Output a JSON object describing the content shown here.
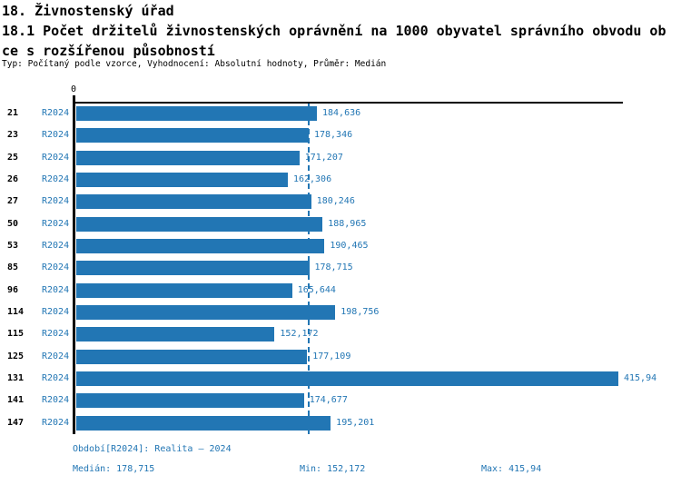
{
  "title": "18. Živnostenský úřad",
  "subtitle_line1": "18.1 Počet držitelů živnostenských oprávnění na 1000 obyvatel správního obvodu ob",
  "subtitle_line2": "ce s rozšířenou působností",
  "meta": "Typ: Počítaný podle vzorce, Vyhodnocení: Absolutní hodnoty, Průměr: Medián",
  "chart_data": {
    "type": "bar",
    "orientation": "horizontal",
    "title": "18.1 Počet držitelů živnostenských oprávnění na 1000 obyvatel správního obvodu obce s rozšířenou působností",
    "axis_zero_label": "0",
    "period_label": "R2024",
    "categories": [
      "21",
      "23",
      "25",
      "26",
      "27",
      "50",
      "53",
      "85",
      "96",
      "114",
      "115",
      "125",
      "131",
      "141",
      "147"
    ],
    "values": [
      184.636,
      178.346,
      171.207,
      162.306,
      180.246,
      188.965,
      190.465,
      178.715,
      165.644,
      198.756,
      152.172,
      177.109,
      415.94,
      174.677,
      195.201
    ],
    "value_labels": [
      "184,636",
      "178,346",
      "171,207",
      "162,306",
      "180,246",
      "188,965",
      "190,465",
      "178,715",
      "165,644",
      "198,756",
      "152,172",
      "177,109",
      "415,94",
      "174,677",
      "195,201"
    ],
    "xlim": [
      0,
      415.94
    ],
    "median": 178.715,
    "min": 152.172,
    "max": 415.94,
    "bar_color": "#2276b4",
    "median_line_color": "#2276b4",
    "grid": false,
    "legend_position": "none"
  },
  "footer": {
    "period": "Období[R2024]: Realita – 2024",
    "median": "Medián: 178,715",
    "min": "Min: 152,172",
    "max": "Max: 415,94"
  }
}
